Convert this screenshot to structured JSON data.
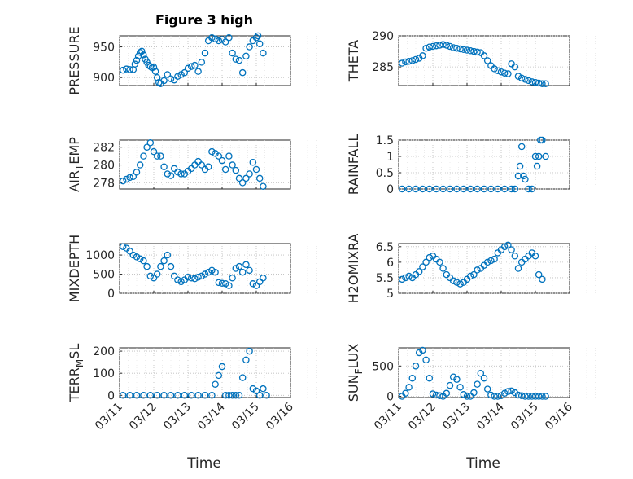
{
  "figure": {
    "title": "Figure 3 high",
    "xlabel": "Time",
    "x_tick_labels": [
      "03/11",
      "03/12",
      "03/13",
      "03/14",
      "03/15",
      "03/16"
    ],
    "marker_color": "#0072BD"
  },
  "chart_data": [
    {
      "type": "scatter",
      "ylabel": "PRESSURE",
      "y_ticks": [
        "900",
        "950"
      ],
      "ylim": [
        887,
        968
      ],
      "xlim": [
        "03/11",
        "03/16"
      ],
      "x_tick_labels_shown": false,
      "series": [
        {
          "x": [
            0.1,
            0.2,
            0.3,
            0.4,
            0.45,
            0.5,
            0.55,
            0.6,
            0.65,
            0.7,
            0.75,
            0.8,
            0.85,
            0.9,
            0.95,
            1.0,
            1.05,
            1.1,
            1.15,
            1.2,
            1.3,
            1.4,
            1.5,
            1.6,
            1.7,
            1.8,
            1.9,
            2.0,
            2.1,
            2.2,
            2.3,
            2.4,
            2.5,
            2.6,
            2.7,
            2.8,
            2.9,
            3.0,
            3.1,
            3.2,
            3.3,
            3.4,
            3.5,
            3.6,
            3.7,
            3.8,
            3.9,
            4.0,
            4.05,
            4.1,
            4.2
          ],
          "y": [
            912,
            914,
            913,
            913,
            922,
            928,
            935,
            941,
            943,
            937,
            930,
            925,
            920,
            918,
            916,
            917,
            910,
            900,
            892,
            890,
            895,
            905,
            898,
            896,
            902,
            905,
            908,
            915,
            918,
            920,
            910,
            925,
            940,
            960,
            965,
            963,
            960,
            962,
            958,
            965,
            940,
            930,
            928,
            908,
            935,
            950,
            960,
            965,
            968,
            955,
            940
          ]
        }
      ]
    },
    {
      "type": "scatter",
      "ylabel": "THETA",
      "y_ticks": [
        "285",
        "290"
      ],
      "ylim": [
        282,
        290
      ],
      "xlim": [
        "03/11",
        "03/16"
      ],
      "x_tick_labels_shown": false,
      "series": [
        {
          "x": [
            0.1,
            0.2,
            0.3,
            0.4,
            0.5,
            0.6,
            0.7,
            0.8,
            0.9,
            1.0,
            1.1,
            1.2,
            1.3,
            1.4,
            1.5,
            1.6,
            1.7,
            1.8,
            1.9,
            2.0,
            2.1,
            2.2,
            2.3,
            2.4,
            2.5,
            2.6,
            2.7,
            2.8,
            2.9,
            3.0,
            3.1,
            3.2,
            3.3,
            3.4,
            3.5,
            3.6,
            3.7,
            3.8,
            3.9,
            4.0,
            4.1,
            4.2,
            4.3
          ],
          "y": [
            285.6,
            285.8,
            285.9,
            286.0,
            286.2,
            286.4,
            286.8,
            288.0,
            288.2,
            288.3,
            288.4,
            288.5,
            288.6,
            288.5,
            288.3,
            288.1,
            288.0,
            287.9,
            287.8,
            287.7,
            287.6,
            287.5,
            287.4,
            287.3,
            286.8,
            286.0,
            285.2,
            284.7,
            284.4,
            284.2,
            284.0,
            283.9,
            285.5,
            285.0,
            283.5,
            283.2,
            283.0,
            282.8,
            282.6,
            282.5,
            282.4,
            282.3,
            282.3
          ]
        }
      ]
    },
    {
      "type": "scatter",
      "ylabel": "AIR_TEMP",
      "y_ticks": [
        "278",
        "280",
        "282"
      ],
      "ylim": [
        277.3,
        282.8
      ],
      "xlim": [
        "03/11",
        "03/16"
      ],
      "x_tick_labels_shown": false,
      "series": [
        {
          "x": [
            0.1,
            0.2,
            0.3,
            0.4,
            0.5,
            0.6,
            0.7,
            0.8,
            0.9,
            1.0,
            1.1,
            1.2,
            1.3,
            1.4,
            1.5,
            1.6,
            1.7,
            1.8,
            1.9,
            2.0,
            2.1,
            2.2,
            2.3,
            2.4,
            2.5,
            2.6,
            2.7,
            2.8,
            2.9,
            3.0,
            3.1,
            3.2,
            3.3,
            3.4,
            3.5,
            3.6,
            3.7,
            3.8,
            3.9,
            4.0,
            4.1,
            4.2
          ],
          "y": [
            278.2,
            278.4,
            278.6,
            278.7,
            279.2,
            280.0,
            281.0,
            282.0,
            282.5,
            281.5,
            281.0,
            281.0,
            279.8,
            279.0,
            278.8,
            279.6,
            279.2,
            279.0,
            279.0,
            279.3,
            279.6,
            280.0,
            280.4,
            280.0,
            279.5,
            279.8,
            281.5,
            281.3,
            281.0,
            280.5,
            279.5,
            281.0,
            280.0,
            279.4,
            278.5,
            278.0,
            278.5,
            279.0,
            280.3,
            279.5,
            278.5,
            277.6
          ]
        }
      ]
    },
    {
      "type": "scatter",
      "ylabel": "RAINFALL",
      "y_ticks": [
        "0",
        "0.5",
        "1",
        "1.5"
      ],
      "ylim": [
        0,
        1.5
      ],
      "xlim": [
        "03/11",
        "03/16"
      ],
      "x_tick_labels_shown": false,
      "series": [
        {
          "x": [
            0.1,
            0.3,
            0.5,
            0.7,
            0.9,
            1.1,
            1.3,
            1.5,
            1.7,
            1.9,
            2.1,
            2.3,
            2.5,
            2.7,
            2.9,
            3.1,
            3.3,
            3.4,
            3.5,
            3.55,
            3.6,
            3.65,
            3.7,
            3.8,
            3.9,
            4.0,
            4.05,
            4.1,
            4.15,
            4.2,
            4.3
          ],
          "y": [
            0,
            0,
            0,
            0,
            0,
            0,
            0,
            0,
            0,
            0,
            0,
            0,
            0,
            0,
            0,
            0,
            0,
            0,
            0.4,
            0.7,
            1.3,
            0.4,
            0.3,
            0,
            0,
            1.0,
            0.7,
            1.0,
            1.5,
            1.5,
            1.0
          ]
        }
      ]
    },
    {
      "type": "scatter",
      "ylabel": "MIXDEPTH",
      "y_ticks": [
        "0",
        "500",
        "1000"
      ],
      "ylim": [
        0,
        1300
      ],
      "xlim": [
        "03/11",
        "03/16"
      ],
      "x_tick_labels_shown": false,
      "series": [
        {
          "x": [
            0.1,
            0.2,
            0.3,
            0.4,
            0.5,
            0.6,
            0.7,
            0.8,
            0.9,
            1.0,
            1.1,
            1.2,
            1.3,
            1.4,
            1.5,
            1.6,
            1.7,
            1.8,
            1.9,
            2.0,
            2.1,
            2.2,
            2.3,
            2.4,
            2.5,
            2.6,
            2.7,
            2.8,
            2.9,
            3.0,
            3.1,
            3.2,
            3.3,
            3.4,
            3.5,
            3.6,
            3.7,
            3.8,
            3.9,
            4.0,
            4.1,
            4.2
          ],
          "y": [
            1220,
            1180,
            1100,
            1000,
            950,
            900,
            850,
            700,
            450,
            400,
            500,
            700,
            850,
            1000,
            700,
            450,
            350,
            300,
            350,
            420,
            400,
            380,
            420,
            450,
            500,
            550,
            600,
            550,
            280,
            260,
            250,
            200,
            400,
            650,
            700,
            550,
            750,
            600,
            250,
            200,
            300,
            400
          ]
        }
      ]
    },
    {
      "type": "scatter",
      "ylabel": "H2OMIXRA",
      "y_ticks": [
        "5",
        "5.5",
        "6",
        "6.5"
      ],
      "ylim": [
        5,
        6.6
      ],
      "xlim": [
        "03/11",
        "03/16"
      ],
      "x_tick_labels_shown": false,
      "series": [
        {
          "x": [
            0.1,
            0.2,
            0.3,
            0.4,
            0.5,
            0.6,
            0.7,
            0.8,
            0.9,
            1.0,
            1.1,
            1.2,
            1.3,
            1.4,
            1.5,
            1.6,
            1.7,
            1.8,
            1.9,
            2.0,
            2.1,
            2.2,
            2.3,
            2.4,
            2.5,
            2.6,
            2.7,
            2.8,
            2.9,
            3.0,
            3.1,
            3.2,
            3.3,
            3.4,
            3.5,
            3.6,
            3.7,
            3.8,
            3.9,
            4.0,
            4.1,
            4.2
          ],
          "y": [
            5.45,
            5.5,
            5.55,
            5.5,
            5.6,
            5.7,
            5.85,
            6.0,
            6.15,
            6.2,
            6.1,
            6.0,
            5.8,
            5.6,
            5.5,
            5.4,
            5.35,
            5.3,
            5.35,
            5.45,
            5.55,
            5.6,
            5.75,
            5.8,
            5.9,
            6.0,
            6.05,
            6.1,
            6.3,
            6.4,
            6.5,
            6.55,
            6.4,
            6.2,
            5.8,
            6.0,
            6.1,
            6.2,
            6.3,
            6.2,
            5.6,
            5.45
          ]
        }
      ]
    },
    {
      "type": "scatter",
      "ylabel": "TERR_MSL",
      "y_ticks": [
        "0",
        "100",
        "200"
      ],
      "ylim": [
        -10,
        215
      ],
      "xlim": [
        "03/11",
        "03/16"
      ],
      "x_tick_labels_shown": true,
      "series": [
        {
          "x": [
            0.1,
            0.3,
            0.5,
            0.7,
            0.9,
            1.1,
            1.3,
            1.5,
            1.7,
            1.9,
            2.1,
            2.3,
            2.5,
            2.7,
            2.8,
            2.9,
            3.0,
            3.1,
            3.2,
            3.3,
            3.4,
            3.5,
            3.6,
            3.7,
            3.8,
            3.9,
            4.0,
            4.1,
            4.2,
            4.3
          ],
          "y": [
            0,
            0,
            0,
            0,
            0,
            0,
            0,
            0,
            0,
            0,
            0,
            0,
            0,
            0,
            50,
            90,
            130,
            0,
            0,
            0,
            0,
            0,
            80,
            160,
            200,
            30,
            20,
            0,
            30,
            0
          ]
        }
      ]
    },
    {
      "type": "scatter",
      "ylabel": "SUN_FLUX",
      "y_ticks": [
        "0",
        "500"
      ],
      "ylim": [
        -20,
        800
      ],
      "xlim": [
        "03/11",
        "03/16"
      ],
      "x_tick_labels_shown": true,
      "series": [
        {
          "x": [
            0.1,
            0.2,
            0.3,
            0.4,
            0.5,
            0.6,
            0.7,
            0.8,
            0.9,
            1.0,
            1.1,
            1.2,
            1.3,
            1.4,
            1.5,
            1.6,
            1.7,
            1.8,
            1.9,
            2.0,
            2.1,
            2.2,
            2.3,
            2.4,
            2.5,
            2.6,
            2.7,
            2.8,
            2.9,
            3.0,
            3.1,
            3.2,
            3.3,
            3.4,
            3.5,
            3.6,
            3.7,
            3.8,
            3.9,
            4.0,
            4.1,
            4.2,
            4.3
          ],
          "y": [
            0,
            50,
            150,
            300,
            500,
            720,
            760,
            600,
            300,
            40,
            20,
            10,
            0,
            50,
            180,
            320,
            280,
            150,
            30,
            0,
            0,
            60,
            200,
            380,
            300,
            120,
            20,
            0,
            0,
            10,
            50,
            80,
            90,
            60,
            20,
            10,
            0,
            0,
            0,
            0,
            0,
            0,
            0
          ]
        }
      ]
    }
  ]
}
